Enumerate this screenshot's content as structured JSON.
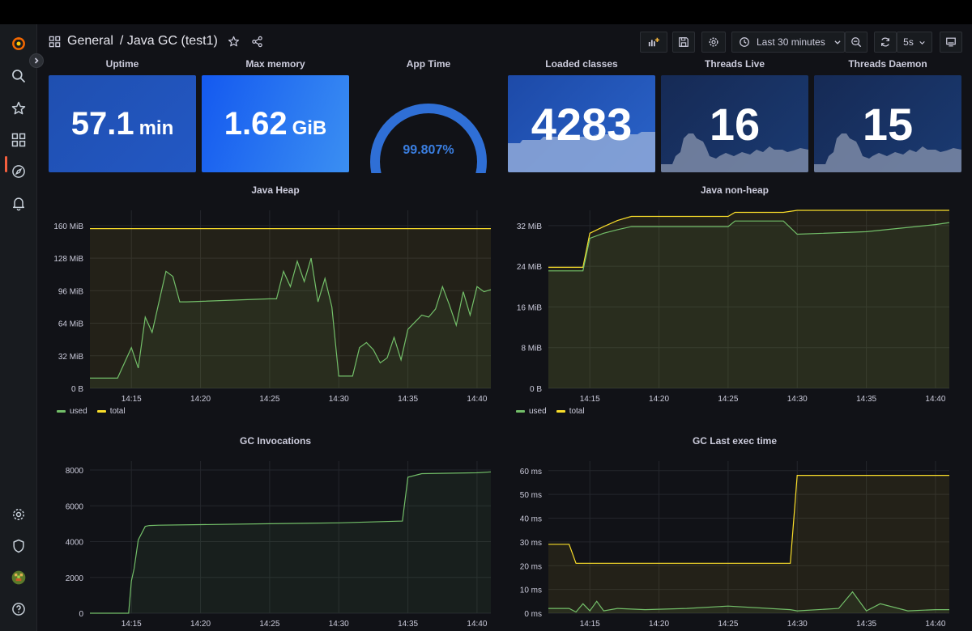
{
  "header": {
    "breadcrumb_folder": "General",
    "breadcrumb_title": "/ Java GC (test1)",
    "time_range": "Last 30 minutes",
    "refresh_interval": "5s"
  },
  "colors": {
    "green": "#73bf69",
    "yellow": "#fade2a",
    "blue": "#3274d9",
    "accent": "#f55f3e"
  },
  "stats": {
    "uptime": {
      "title": "Uptime",
      "value": "57.1",
      "unit": "min"
    },
    "max_memory": {
      "title": "Max memory",
      "value": "1.62",
      "unit": "GiB"
    },
    "app_time": {
      "title": "App Time",
      "value": "99.807%",
      "fraction": 0.99807
    },
    "loaded_classes": {
      "title": "Loaded classes",
      "value": "4283"
    },
    "threads_live": {
      "title": "Threads Live",
      "value": "16"
    },
    "threads_daemon": {
      "title": "Threads Daemon",
      "value": "15"
    }
  },
  "legend": {
    "used": "used",
    "total": "total"
  },
  "chart_data": [
    {
      "type": "line",
      "title": "Java Heap",
      "x_ticks": [
        "14:15",
        "14:20",
        "14:25",
        "14:30",
        "14:35",
        "14:40"
      ],
      "y_ticks": [
        "0 B",
        "32 MiB",
        "64 MiB",
        "96 MiB",
        "128 MiB",
        "160 MiB"
      ],
      "ylim": [
        0,
        175
      ],
      "x": [
        "14:12",
        "14:14",
        "14:15",
        "14:15.5",
        "14:16",
        "14:16.5",
        "14:17",
        "14:17.5",
        "14:18",
        "14:18.5",
        "14:19",
        "14:25",
        "14:25.5",
        "14:26",
        "14:26.5",
        "14:27",
        "14:27.5",
        "14:28",
        "14:28.5",
        "14:29",
        "14:29.5",
        "14:30",
        "14:31",
        "14:31.5",
        "14:32",
        "14:32.5",
        "14:33",
        "14:33.5",
        "14:34",
        "14:34.5",
        "14:35",
        "14:35.5",
        "14:36",
        "14:36.5",
        "14:37",
        "14:37.5",
        "14:38",
        "14:38.5",
        "14:39",
        "14:39.5",
        "14:40",
        "14:40.5",
        "14:41"
      ],
      "series": [
        {
          "name": "used",
          "values": [
            10,
            10,
            40,
            20,
            70,
            55,
            85,
            115,
            110,
            85,
            85,
            88,
            88,
            115,
            100,
            125,
            105,
            128,
            85,
            108,
            80,
            12,
            12,
            40,
            45,
            38,
            25,
            30,
            50,
            28,
            58,
            65,
            72,
            70,
            78,
            100,
            82,
            62,
            95,
            72,
            100,
            95,
            97
          ]
        },
        {
          "name": "total",
          "values": [
            157,
            157,
            157,
            157,
            157,
            157,
            157,
            157,
            157,
            157,
            157,
            157,
            157,
            157,
            157,
            157,
            157,
            157,
            157,
            157,
            157,
            157,
            157,
            157,
            157,
            157,
            157,
            157,
            157,
            157,
            157,
            157,
            157,
            157,
            157,
            157,
            157,
            157,
            157,
            157,
            157,
            157,
            157
          ]
        }
      ]
    },
    {
      "type": "line",
      "title": "Java non-heap",
      "x_ticks": [
        "14:15",
        "14:20",
        "14:25",
        "14:30",
        "14:35",
        "14:40"
      ],
      "y_ticks": [
        "0 B",
        "8 MiB",
        "16 MiB",
        "24 MiB",
        "32 MiB"
      ],
      "ylim": [
        0,
        35
      ],
      "x": [
        "14:12",
        "14:14.5",
        "14:15",
        "14:16",
        "14:17",
        "14:18",
        "14:25",
        "14:25.5",
        "14:29",
        "14:30",
        "14:35",
        "14:40",
        "14:41"
      ],
      "series": [
        {
          "name": "used",
          "values": [
            23.1,
            23.1,
            29.5,
            30.5,
            31.2,
            31.8,
            31.8,
            32.9,
            32.9,
            30.3,
            30.8,
            32.2,
            32.6
          ]
        },
        {
          "name": "total",
          "values": [
            23.8,
            23.8,
            30.5,
            31.8,
            33,
            33.8,
            33.8,
            34.6,
            34.6,
            35,
            35,
            35,
            35
          ]
        }
      ]
    },
    {
      "type": "line",
      "title": "GC Invocations",
      "x_ticks": [
        "14:15",
        "14:20",
        "14:25",
        "14:30",
        "14:35",
        "14:40"
      ],
      "y_ticks": [
        "0",
        "2000",
        "4000",
        "6000",
        "8000"
      ],
      "ylim": [
        0,
        8500
      ],
      "x": [
        "14:12",
        "14:14.8",
        "14:15",
        "14:15.2",
        "14:15.5",
        "14:16",
        "14:16.3",
        "14:17",
        "14:20",
        "14:25",
        "14:30",
        "14:34.6",
        "14:35",
        "14:36",
        "14:40",
        "14:41"
      ],
      "series": [
        {
          "name": "used",
          "values": [
            0,
            0,
            1800,
            2500,
            4100,
            4850,
            4900,
            4920,
            4950,
            5000,
            5050,
            5150,
            7600,
            7800,
            7850,
            7900
          ]
        }
      ]
    },
    {
      "type": "line",
      "title": "GC Last exec time",
      "x_ticks": [
        "14:15",
        "14:20",
        "14:25",
        "14:30",
        "14:35",
        "14:40"
      ],
      "y_ticks": [
        "0 ms",
        "10 ms",
        "20 ms",
        "30 ms",
        "40 ms",
        "50 ms",
        "60 ms"
      ],
      "ylim": [
        0,
        64
      ],
      "x": [
        "14:12",
        "14:13.5",
        "14:14",
        "14:14.5",
        "14:15",
        "14:15.5",
        "14:16",
        "14:17",
        "14:19",
        "14:22",
        "14:25",
        "14:29.5",
        "14:30",
        "14:33",
        "14:34",
        "14:35",
        "14:36",
        "14:38",
        "14:40",
        "14:41"
      ],
      "series": [
        {
          "name": "used",
          "values": [
            2,
            2,
            0.5,
            4,
            1,
            5,
            1,
            2,
            1.5,
            2,
            3,
            1.5,
            1,
            2,
            9,
            1,
            4,
            1,
            1.5,
            1.5
          ]
        },
        {
          "name": "total",
          "values": [
            29,
            29,
            21,
            21,
            21,
            21,
            21,
            21,
            21,
            21,
            21,
            21,
            58,
            58,
            58,
            58,
            58,
            58,
            58,
            58
          ]
        }
      ]
    }
  ]
}
